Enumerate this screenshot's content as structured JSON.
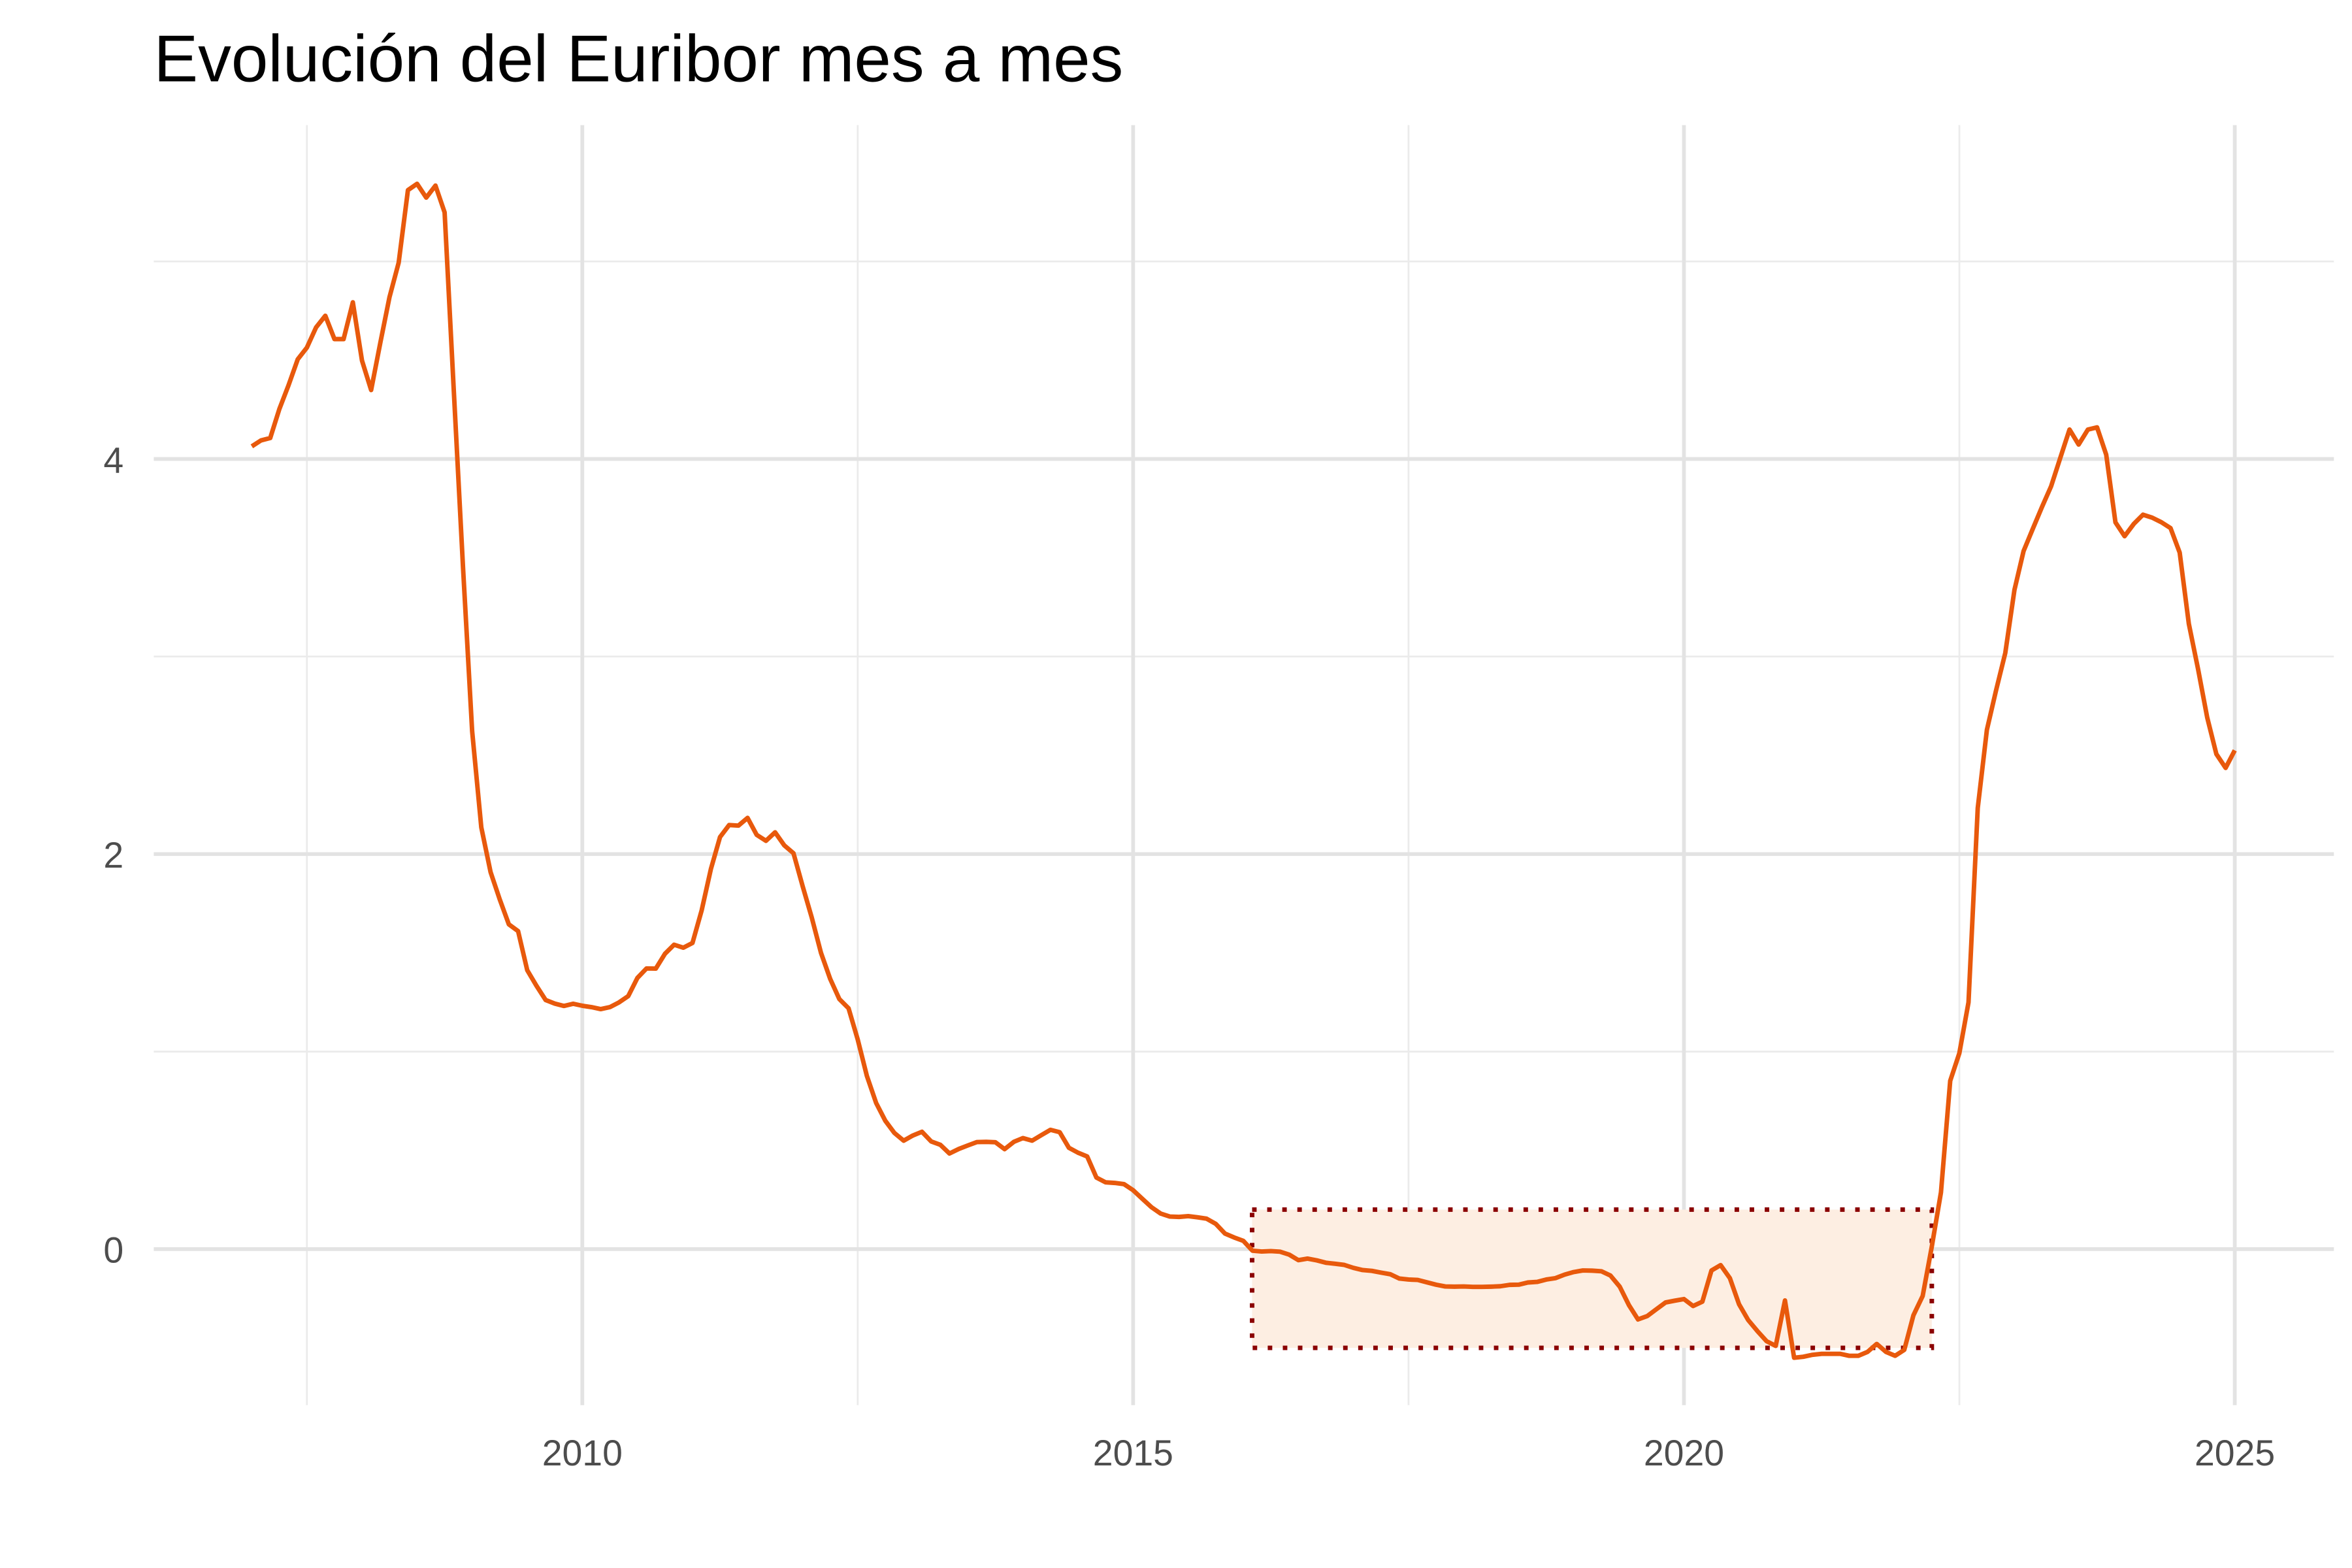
{
  "chart_data": {
    "type": "line",
    "title": "Evolución del Euribor mes a mes",
    "x": [
      2007,
      2007.083,
      2007.167,
      2007.25,
      2007.333,
      2007.417,
      2007.5,
      2007.583,
      2007.667,
      2007.75,
      2007.833,
      2007.917,
      2008,
      2008.083,
      2008.167,
      2008.25,
      2008.333,
      2008.417,
      2008.5,
      2008.583,
      2008.667,
      2008.75,
      2008.833,
      2008.917,
      2009,
      2009.083,
      2009.167,
      2009.25,
      2009.333,
      2009.417,
      2009.5,
      2009.583,
      2009.667,
      2009.75,
      2009.833,
      2009.917,
      2010,
      2010.083,
      2010.167,
      2010.25,
      2010.333,
      2010.417,
      2010.5,
      2010.583,
      2010.667,
      2010.75,
      2010.833,
      2010.917,
      2011,
      2011.083,
      2011.167,
      2011.25,
      2011.333,
      2011.417,
      2011.5,
      2011.583,
      2011.667,
      2011.75,
      2011.833,
      2011.917,
      2012,
      2012.083,
      2012.167,
      2012.25,
      2012.333,
      2012.417,
      2012.5,
      2012.583,
      2012.667,
      2012.75,
      2012.833,
      2012.917,
      2013,
      2013.083,
      2013.167,
      2013.25,
      2013.333,
      2013.417,
      2013.5,
      2013.583,
      2013.667,
      2013.75,
      2013.833,
      2013.917,
      2014,
      2014.083,
      2014.167,
      2014.25,
      2014.333,
      2014.417,
      2014.5,
      2014.583,
      2014.667,
      2014.75,
      2014.833,
      2014.917,
      2015,
      2015.083,
      2015.167,
      2015.25,
      2015.333,
      2015.417,
      2015.5,
      2015.583,
      2015.667,
      2015.75,
      2015.833,
      2015.917,
      2016,
      2016.083,
      2016.167,
      2016.25,
      2016.333,
      2016.417,
      2016.5,
      2016.583,
      2016.667,
      2016.75,
      2016.833,
      2016.917,
      2017,
      2017.083,
      2017.167,
      2017.25,
      2017.333,
      2017.417,
      2017.5,
      2017.583,
      2017.667,
      2017.75,
      2017.833,
      2017.917,
      2018,
      2018.083,
      2018.167,
      2018.25,
      2018.333,
      2018.417,
      2018.5,
      2018.583,
      2018.667,
      2018.75,
      2018.833,
      2018.917,
      2019,
      2019.083,
      2019.167,
      2019.25,
      2019.333,
      2019.417,
      2019.5,
      2019.583,
      2019.667,
      2019.75,
      2019.833,
      2019.917,
      2020,
      2020.083,
      2020.167,
      2020.25,
      2020.333,
      2020.417,
      2020.5,
      2020.583,
      2020.667,
      2020.75,
      2020.833,
      2020.917,
      2021,
      2021.083,
      2021.167,
      2021.25,
      2021.333,
      2021.417,
      2021.5,
      2021.583,
      2021.667,
      2021.75,
      2021.833,
      2021.917,
      2022,
      2022.083,
      2022.167,
      2022.25,
      2022.333,
      2022.417,
      2022.5,
      2022.583,
      2022.667,
      2022.75,
      2022.833,
      2022.917,
      2023,
      2023.083,
      2023.167,
      2023.25,
      2023.333,
      2023.417,
      2023.5,
      2023.583,
      2023.667,
      2023.75,
      2023.833,
      2023.917,
      2024,
      2024.083,
      2024.167,
      2024.25,
      2024.333,
      2024.417,
      2024.5,
      2024.583,
      2024.667,
      2024.75,
      2024.833,
      2024.917,
      2025
    ],
    "series": [
      {
        "color": "#e8590c",
        "values": [
          4.064,
          4.094,
          4.106,
          4.253,
          4.373,
          4.505,
          4.564,
          4.666,
          4.725,
          4.607,
          4.607,
          4.793,
          4.498,
          4.349,
          4.59,
          4.82,
          4.994,
          5.361,
          5.393,
          5.323,
          5.384,
          5.248,
          4.35,
          3.452,
          2.622,
          2.135,
          1.909,
          1.771,
          1.644,
          1.61,
          1.412,
          1.334,
          1.261,
          1.243,
          1.231,
          1.242,
          1.232,
          1.225,
          1.215,
          1.225,
          1.249,
          1.281,
          1.373,
          1.421,
          1.42,
          1.495,
          1.541,
          1.526,
          1.55,
          1.714,
          1.924,
          2.086,
          2.147,
          2.144,
          2.183,
          2.097,
          2.067,
          2.11,
          2.044,
          2.004,
          1.837,
          1.678,
          1.499,
          1.368,
          1.266,
          1.219,
          1.061,
          0.877,
          0.74,
          0.65,
          0.588,
          0.549,
          0.575,
          0.594,
          0.545,
          0.528,
          0.484,
          0.507,
          0.525,
          0.542,
          0.543,
          0.541,
          0.506,
          0.543,
          0.562,
          0.549,
          0.577,
          0.604,
          0.592,
          0.513,
          0.488,
          0.469,
          0.362,
          0.338,
          0.335,
          0.329,
          0.298,
          0.255,
          0.212,
          0.18,
          0.165,
          0.163,
          0.167,
          0.161,
          0.154,
          0.128,
          0.079,
          0.059,
          0.042,
          -0.008,
          -0.012,
          -0.01,
          -0.013,
          -0.028,
          -0.056,
          -0.048,
          -0.057,
          -0.069,
          -0.074,
          -0.08,
          -0.095,
          -0.106,
          -0.11,
          -0.119,
          -0.127,
          -0.149,
          -0.154,
          -0.156,
          -0.168,
          -0.18,
          -0.189,
          -0.19,
          -0.189,
          -0.191,
          -0.191,
          -0.19,
          -0.188,
          -0.181,
          -0.18,
          -0.169,
          -0.166,
          -0.154,
          -0.147,
          -0.129,
          -0.116,
          -0.108,
          -0.109,
          -0.112,
          -0.134,
          -0.19,
          -0.283,
          -0.356,
          -0.339,
          -0.304,
          -0.27,
          -0.261,
          -0.253,
          -0.288,
          -0.266,
          -0.108,
          -0.081,
          -0.147,
          -0.279,
          -0.359,
          -0.415,
          -0.466,
          -0.49,
          -0.26,
          -0.55,
          -0.545,
          -0.535,
          -0.53,
          -0.53,
          -0.53,
          -0.54,
          -0.54,
          -0.52,
          -0.48,
          -0.52,
          -0.54,
          -0.51,
          -0.335,
          -0.237,
          0.013,
          0.287,
          0.852,
          0.992,
          1.249,
          2.233,
          2.629,
          2.828,
          3.018,
          3.337,
          3.534,
          3.647,
          3.757,
          3.862,
          4.007,
          4.149,
          4.073,
          4.149,
          4.16,
          4.022,
          3.679,
          3.609,
          3.671,
          3.718,
          3.703,
          3.68,
          3.65,
          3.526,
          3.166,
          2.936,
          2.691,
          2.506,
          2.436,
          2.525
        ]
      }
    ],
    "xlim": [
      2006.11,
      2025.9
    ],
    "ylim": [
      -0.79,
      5.69
    ],
    "xticks": [
      2010,
      2015,
      2020,
      2025
    ],
    "yticks": [
      0,
      2,
      4
    ],
    "xticks_minor": [
      2007.5,
      2012.5,
      2017.5,
      2022.5
    ],
    "yticks_minor": [
      1,
      3,
      5
    ],
    "grid": true,
    "highlight": {
      "xlim": [
        2016.08,
        2022.25
      ],
      "ylim": [
        -0.5,
        0.2
      ],
      "fill": "#fdeee2",
      "color": "#8b0000"
    }
  }
}
